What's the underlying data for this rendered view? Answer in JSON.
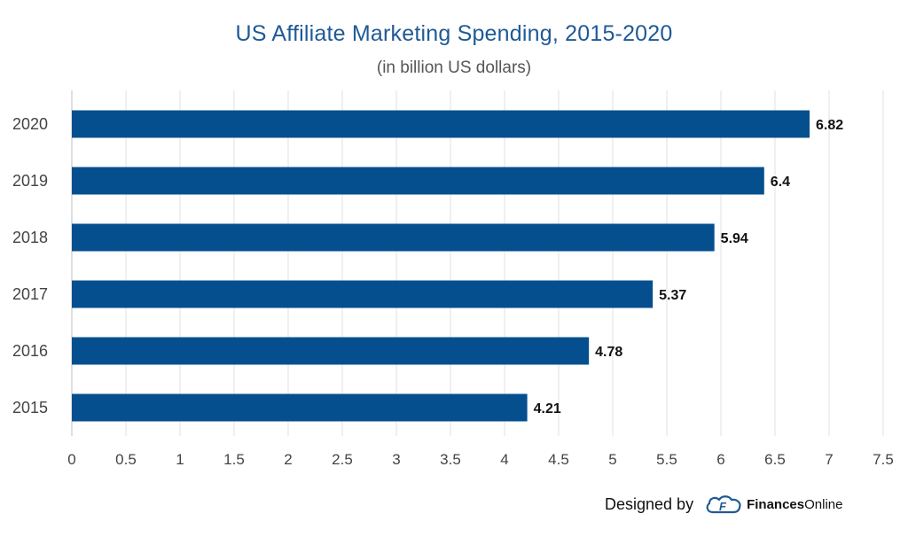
{
  "chart_data": {
    "type": "bar",
    "orientation": "horizontal",
    "title": "US Affiliate Marketing Spending, 2015-2020",
    "subtitle": "(in billion US dollars)",
    "categories": [
      "2020",
      "2019",
      "2018",
      "2017",
      "2016",
      "2015"
    ],
    "values": [
      6.82,
      6.4,
      5.94,
      5.37,
      4.78,
      4.21
    ],
    "value_labels": [
      "6.82",
      "6.4",
      "5.94",
      "5.37",
      "4.78",
      "4.21"
    ],
    "xlim": [
      0,
      7.5
    ],
    "x_ticks": [
      "0",
      "0.5",
      "1",
      "1.5",
      "2",
      "2.5",
      "3",
      "3.5",
      "4",
      "4.5",
      "5",
      "5.5",
      "6",
      "6.5",
      "7",
      "7.5"
    ],
    "grid": "vertical",
    "bar_color": "#054f8f",
    "xlabel": "",
    "ylabel": ""
  },
  "credit": {
    "label": "Designed by",
    "brand_bold": "Finances",
    "brand_regular": "Online",
    "logo_icon": "finances-online-logo-icon",
    "brand_color": "#1f5a96"
  }
}
